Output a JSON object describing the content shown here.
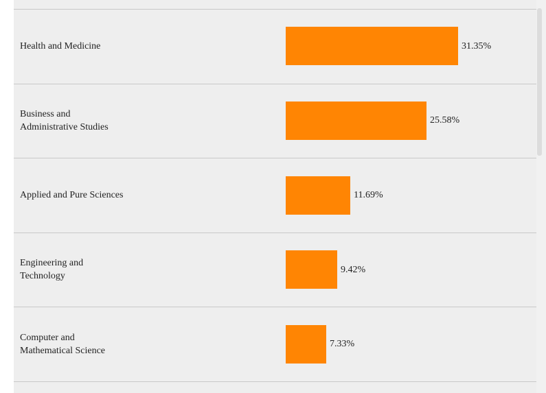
{
  "chart_data": {
    "type": "bar",
    "orientation": "horizontal",
    "categories": [
      "Health and Medicine",
      "Business and\nAdministrative Studies",
      "Applied and Pure Sciences",
      "Engineering and\nTechnology",
      "Computer and\nMathematical Science"
    ],
    "values": [
      31.35,
      25.58,
      11.69,
      9.42,
      7.33
    ],
    "value_labels": [
      "31.35%",
      "25.58%",
      "11.69%",
      "9.42%",
      "7.33%"
    ],
    "xlim": [
      0,
      100
    ],
    "bar_color": "#ff8503",
    "grid": false,
    "legend": "none"
  },
  "colors": {
    "panel_background": "#eeeeee",
    "row_divider": "#c8c8c8",
    "text": "#222222"
  }
}
